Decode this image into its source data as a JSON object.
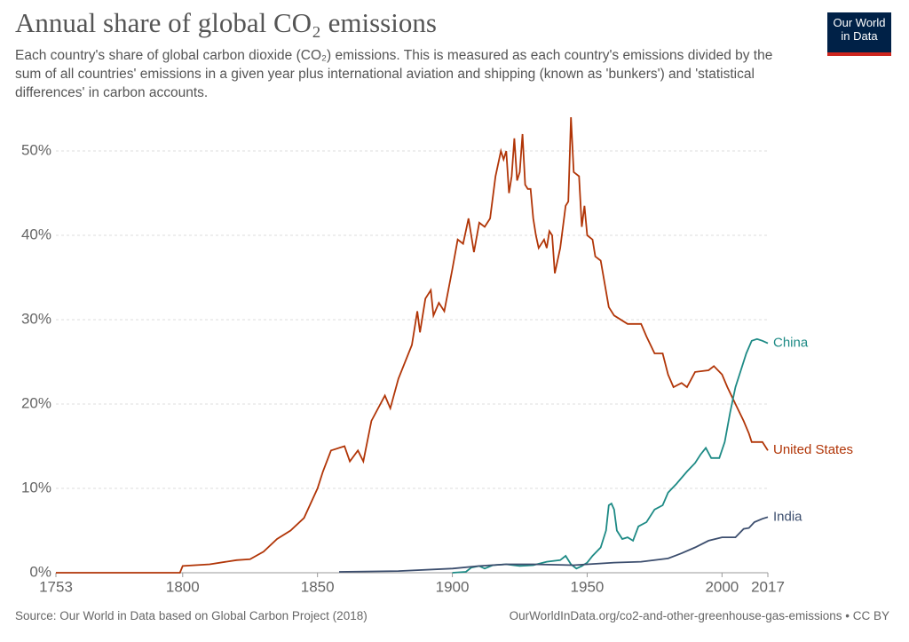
{
  "chart_data": {
    "type": "line",
    "title": "Annual share of global CO₂ emissions",
    "subtitle": "Each country's share of global carbon dioxide (CO₂) emissions. This is measured as each country's emissions divided by the sum of all countries' emissions in a given year plus international aviation and shipping (known as 'bunkers') and 'statistical differences' in carbon accounts.",
    "logo": [
      "Our World",
      "in Data"
    ],
    "source": "Source: Our World in Data based on Global Carbon Project (2018)",
    "url": "OurWorldInData.org/co2-and-other-greenhouse-gas-emissions • CC BY",
    "xlim": [
      1753,
      2017
    ],
    "xticks": [
      1753,
      1800,
      1850,
      1900,
      1950,
      2000,
      2017
    ],
    "ylim": [
      0,
      55
    ],
    "yticks": [
      {
        "value": 0,
        "label": "0%"
      },
      {
        "value": 10,
        "label": "10%"
      },
      {
        "value": 20,
        "label": "20%"
      },
      {
        "value": 30,
        "label": "30%"
      },
      {
        "value": 40,
        "label": "40%"
      },
      {
        "value": 50,
        "label": "50%"
      }
    ],
    "grid": true,
    "series": [
      {
        "name": "United States",
        "color": "#b13507",
        "x": [
          1753,
          1799,
          1800,
          1810,
          1820,
          1825,
          1830,
          1835,
          1840,
          1845,
          1850,
          1852,
          1855,
          1860,
          1862,
          1865,
          1867,
          1870,
          1875,
          1877,
          1880,
          1885,
          1887,
          1888,
          1890,
          1892,
          1893,
          1895,
          1897,
          1900,
          1902,
          1904,
          1906,
          1908,
          1910,
          1912,
          1914,
          1916,
          1918,
          1919,
          1920,
          1921,
          1922,
          1923,
          1924,
          1925,
          1926,
          1927,
          1928,
          1929,
          1930,
          1931,
          1932,
          1934,
          1935,
          1936,
          1937,
          1938,
          1940,
          1942,
          1943,
          1944,
          1945,
          1947,
          1948,
          1949,
          1950,
          1952,
          1953,
          1955,
          1958,
          1960,
          1965,
          1970,
          1972,
          1975,
          1978,
          1980,
          1982,
          1985,
          1987,
          1990,
          1995,
          1997,
          2000,
          2002,
          2005,
          2008,
          2010,
          2011,
          2013,
          2015,
          2017
        ],
        "values": [
          0,
          0,
          0.8,
          1.0,
          1.5,
          1.6,
          2.5,
          4,
          5,
          6.5,
          10,
          12,
          14.5,
          15,
          13.2,
          14.5,
          13.2,
          18,
          21,
          19.5,
          23,
          27,
          31,
          28.5,
          32.5,
          33.5,
          30.5,
          32,
          31,
          36,
          39.5,
          39,
          42,
          38,
          41.5,
          41,
          42,
          47,
          50,
          49,
          50,
          45,
          47,
          51.5,
          46.5,
          47.5,
          52,
          46,
          45.5,
          45.5,
          42,
          40,
          38.5,
          39.5,
          38.5,
          40.5,
          40,
          35.5,
          38.5,
          43.5,
          44,
          54,
          47.5,
          47,
          41,
          43.5,
          40,
          39.5,
          37.5,
          37,
          31.5,
          30.5,
          29.5,
          29.5,
          28,
          26,
          26,
          23.5,
          22,
          22.5,
          22,
          23.8,
          24,
          24.5,
          23.5,
          22,
          20,
          18,
          16.5,
          15.5,
          15.5,
          15.5,
          14.5
        ]
      },
      {
        "name": "China",
        "color": "#1d8a85",
        "x": [
          1900,
          1905,
          1907,
          1910,
          1912,
          1915,
          1920,
          1925,
          1930,
          1935,
          1940,
          1942,
          1944,
          1946,
          1948,
          1950,
          1952,
          1955,
          1957,
          1958,
          1959,
          1960,
          1961,
          1963,
          1965,
          1967,
          1969,
          1972,
          1975,
          1978,
          1980,
          1983,
          1987,
          1990,
          1992,
          1994,
          1996,
          1999,
          2001,
          2003,
          2005,
          2007,
          2009,
          2011,
          2013,
          2015,
          2017
        ],
        "values": [
          0,
          0.1,
          0.6,
          0.8,
          0.5,
          0.9,
          1.0,
          0.8,
          0.9,
          1.3,
          1.5,
          2,
          1,
          0.5,
          0.8,
          1.2,
          2,
          3,
          5,
          8,
          8.2,
          7.5,
          5,
          4,
          4.2,
          3.8,
          5.5,
          6,
          7.5,
          8,
          9.5,
          10.5,
          12,
          13,
          14,
          14.8,
          13.6,
          13.6,
          15.5,
          19,
          22,
          24,
          26,
          27.5,
          27.7,
          27.5,
          27.2
        ]
      },
      {
        "name": "India",
        "color": "#3c4e6e",
        "x": [
          1858,
          1880,
          1900,
          1910,
          1920,
          1930,
          1945,
          1950,
          1960,
          1970,
          1980,
          1985,
          1990,
          1995,
          2000,
          2005,
          2008,
          2010,
          2012,
          2015,
          2017
        ],
        "values": [
          0.1,
          0.2,
          0.5,
          0.8,
          1.0,
          1.0,
          0.9,
          1.0,
          1.2,
          1.3,
          1.7,
          2.3,
          3,
          3.8,
          4.2,
          4.2,
          5.2,
          5.3,
          6,
          6.4,
          6.6
        ]
      }
    ]
  }
}
